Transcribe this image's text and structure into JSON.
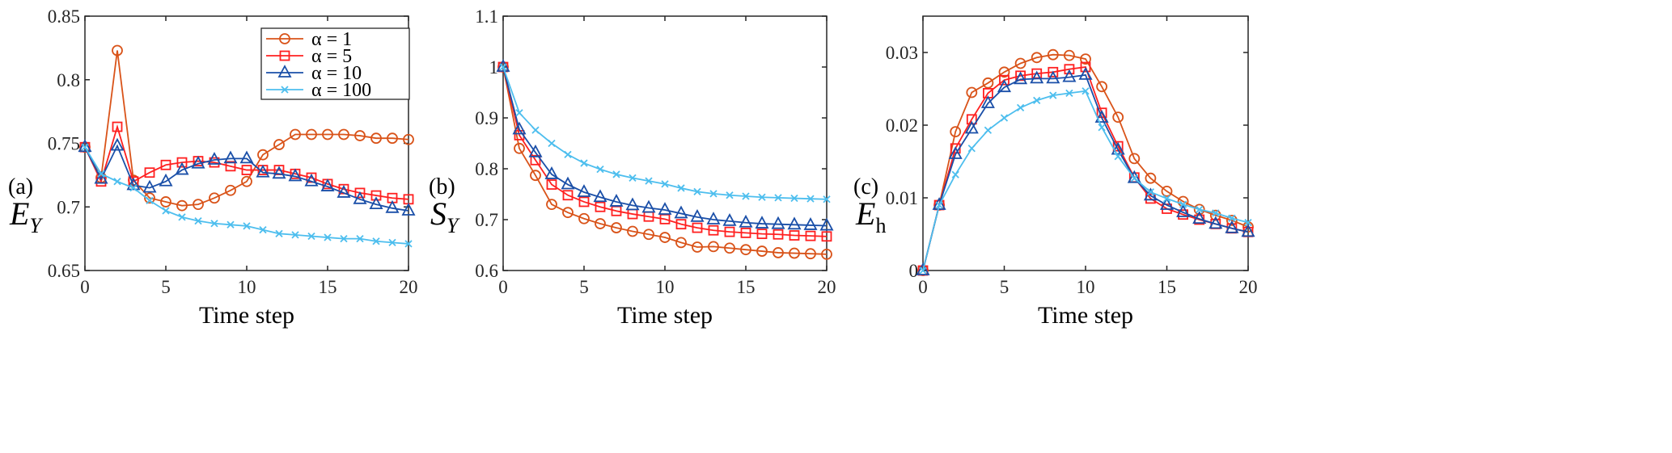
{
  "chart_data": [
    {
      "type": "line",
      "panel_label": "(a)",
      "ylabel": "E",
      "ylabel_sub": "Y",
      "xlabel": "Time step",
      "xlim": [
        0,
        20
      ],
      "ylim": [
        0.65,
        0.85
      ],
      "xticks": [
        0,
        5,
        10,
        15,
        20
      ],
      "xtick_labels": [
        "0",
        "5",
        "10",
        "15",
        "20"
      ],
      "yticks": [
        0.65,
        0.7,
        0.75,
        0.8,
        0.85
      ],
      "ytick_labels": [
        "0.65",
        "0.7",
        "0.75",
        "0.8",
        "0.85"
      ],
      "legend": "top-right",
      "x": [
        0,
        1,
        2,
        3,
        4,
        5,
        6,
        7,
        8,
        9,
        10,
        11,
        12,
        13,
        14,
        15,
        16,
        17,
        18,
        19,
        20
      ],
      "series": [
        {
          "name": "α = 1",
          "color": "#D95319",
          "marker": "circle",
          "values": [
            0.747,
            0.723,
            0.823,
            0.721,
            0.707,
            0.704,
            0.701,
            0.702,
            0.707,
            0.713,
            0.72,
            0.741,
            0.749,
            0.757,
            0.757,
            0.757,
            0.757,
            0.756,
            0.754,
            0.754,
            0.753
          ]
        },
        {
          "name": "α = 5",
          "color": "#FF2020",
          "marker": "square",
          "values": [
            0.747,
            0.72,
            0.763,
            0.72,
            0.727,
            0.733,
            0.735,
            0.736,
            0.735,
            0.732,
            0.729,
            0.729,
            0.729,
            0.726,
            0.723,
            0.718,
            0.714,
            0.711,
            0.709,
            0.707,
            0.706
          ]
        },
        {
          "name": "α = 10",
          "color": "#1A4FA8",
          "marker": "triangle",
          "values": [
            0.747,
            0.722,
            0.748,
            0.717,
            0.715,
            0.72,
            0.729,
            0.734,
            0.737,
            0.738,
            0.738,
            0.727,
            0.726,
            0.724,
            0.72,
            0.716,
            0.711,
            0.706,
            0.702,
            0.699,
            0.697
          ]
        },
        {
          "name": "α = 100",
          "color": "#4DBEEE",
          "marker": "x",
          "values": [
            0.747,
            0.726,
            0.72,
            0.715,
            0.705,
            0.697,
            0.692,
            0.689,
            0.687,
            0.686,
            0.685,
            0.682,
            0.679,
            0.678,
            0.677,
            0.676,
            0.675,
            0.675,
            0.673,
            0.672,
            0.671
          ]
        }
      ]
    },
    {
      "type": "line",
      "panel_label": "(b)",
      "ylabel": "S",
      "ylabel_sub": "Y",
      "xlabel": "Time step",
      "xlim": [
        0,
        20
      ],
      "ylim": [
        0.6,
        1.1
      ],
      "xticks": [
        0,
        5,
        10,
        15,
        20
      ],
      "xtick_labels": [
        "0",
        "5",
        "10",
        "15",
        "20"
      ],
      "yticks": [
        0.6,
        0.7,
        0.8,
        0.9,
        1.0,
        1.1
      ],
      "ytick_labels": [
        "0.6",
        "0.7",
        "0.8",
        "0.9",
        "1",
        "1.1"
      ],
      "x": [
        0,
        1,
        2,
        3,
        4,
        5,
        6,
        7,
        8,
        9,
        10,
        11,
        12,
        13,
        14,
        15,
        16,
        17,
        18,
        19,
        20
      ],
      "series": [
        {
          "name": "α = 1",
          "color": "#D95319",
          "marker": "circle",
          "values": [
            1,
            0.84,
            0.787,
            0.73,
            0.714,
            0.702,
            0.692,
            0.684,
            0.677,
            0.671,
            0.665,
            0.655,
            0.646,
            0.647,
            0.644,
            0.641,
            0.638,
            0.635,
            0.634,
            0.633,
            0.632
          ]
        },
        {
          "name": "α = 5",
          "color": "#FF2020",
          "marker": "square",
          "values": [
            1,
            0.866,
            0.817,
            0.769,
            0.748,
            0.735,
            0.725,
            0.717,
            0.711,
            0.706,
            0.701,
            0.691,
            0.684,
            0.679,
            0.676,
            0.674,
            0.672,
            0.671,
            0.669,
            0.668,
            0.667
          ]
        },
        {
          "name": "α = 10",
          "color": "#1A4FA8",
          "marker": "triangle",
          "values": [
            1,
            0.877,
            0.832,
            0.789,
            0.769,
            0.754,
            0.744,
            0.735,
            0.728,
            0.723,
            0.719,
            0.712,
            0.705,
            0.7,
            0.697,
            0.694,
            0.692,
            0.691,
            0.69,
            0.689,
            0.688
          ]
        },
        {
          "name": "α = 100",
          "color": "#4DBEEE",
          "marker": "x",
          "values": [
            1,
            0.91,
            0.876,
            0.85,
            0.828,
            0.811,
            0.799,
            0.789,
            0.782,
            0.776,
            0.77,
            0.762,
            0.755,
            0.751,
            0.748,
            0.746,
            0.744,
            0.743,
            0.742,
            0.741,
            0.74
          ]
        }
      ]
    },
    {
      "type": "line",
      "panel_label": "(c)",
      "ylabel": "E",
      "ylabel_sub": "h",
      "xlabel": "Time step",
      "xlim": [
        0,
        20
      ],
      "ylim": [
        0,
        0.035
      ],
      "xticks": [
        0,
        5,
        10,
        15,
        20
      ],
      "xtick_labels": [
        "0",
        "5",
        "10",
        "15",
        "20"
      ],
      "yticks": [
        0,
        0.01,
        0.02,
        0.03
      ],
      "ytick_labels": [
        "0",
        "0.01",
        "0.02",
        "0.03"
      ],
      "x": [
        0,
        1,
        2,
        3,
        4,
        5,
        6,
        7,
        8,
        9,
        10,
        11,
        12,
        13,
        14,
        15,
        16,
        17,
        18,
        19,
        20
      ],
      "series": [
        {
          "name": "α = 1",
          "color": "#D95319",
          "marker": "circle",
          "values": [
            0,
            0.009,
            0.0191,
            0.0245,
            0.0258,
            0.0273,
            0.0285,
            0.0293,
            0.0297,
            0.0296,
            0.0291,
            0.0253,
            0.0211,
            0.0154,
            0.0127,
            0.0109,
            0.0095,
            0.0084,
            0.0076,
            0.0069,
            0.006
          ]
        },
        {
          "name": "α = 5",
          "color": "#FF2020",
          "marker": "square",
          "values": [
            0,
            0.009,
            0.0168,
            0.0208,
            0.0244,
            0.0262,
            0.0268,
            0.0271,
            0.0273,
            0.0277,
            0.028,
            0.0217,
            0.0171,
            0.0128,
            0.0099,
            0.0085,
            0.0077,
            0.007,
            0.0064,
            0.0058,
            0.0053
          ]
        },
        {
          "name": "α = 10",
          "color": "#1A4FA8",
          "marker": "triangle",
          "values": [
            0,
            0.009,
            0.016,
            0.0195,
            0.023,
            0.0252,
            0.0263,
            0.0264,
            0.0264,
            0.0266,
            0.0269,
            0.021,
            0.0166,
            0.0127,
            0.0103,
            0.009,
            0.008,
            0.0071,
            0.0064,
            0.0058,
            0.0053
          ]
        },
        {
          "name": "α = 100",
          "color": "#4DBEEE",
          "marker": "x",
          "values": [
            0,
            0.009,
            0.0132,
            0.0168,
            0.0193,
            0.021,
            0.0224,
            0.0234,
            0.0241,
            0.0244,
            0.0247,
            0.0197,
            0.0157,
            0.0127,
            0.0108,
            0.0099,
            0.0091,
            0.0084,
            0.0079,
            0.0072,
            0.0066
          ]
        }
      ]
    }
  ]
}
